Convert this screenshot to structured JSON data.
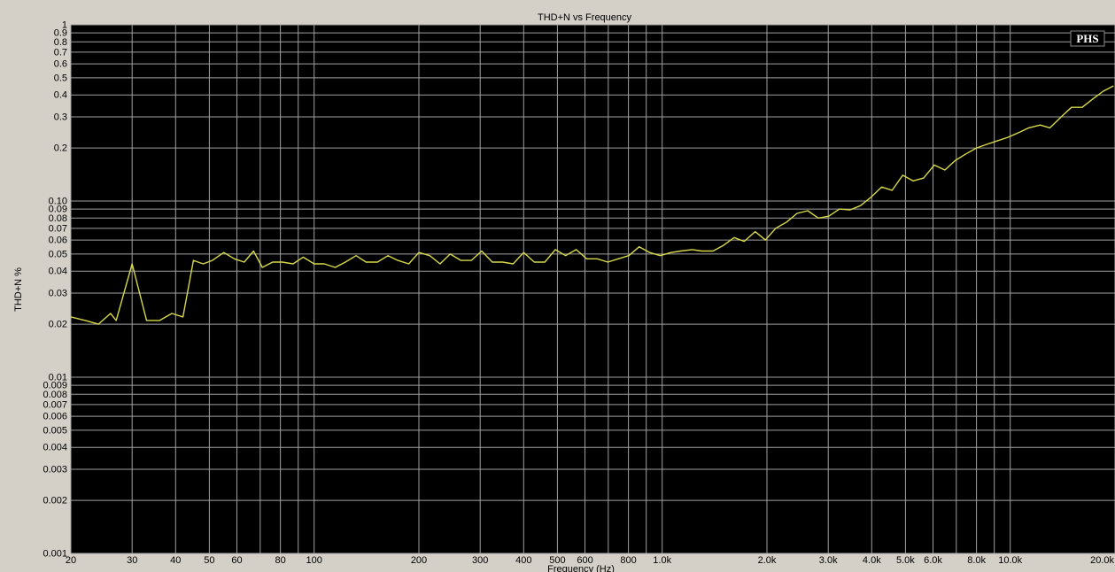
{
  "chart_data": {
    "type": "line",
    "title": "THD+N vs Frequency",
    "xlabel": "Frequency (Hz)",
    "ylabel": "THD+N %",
    "x_scale": "log",
    "y_scale": "log",
    "xlim": [
      20,
      20000
    ],
    "ylim": [
      0.001,
      1
    ],
    "grid": true,
    "badge": "PHS",
    "colors": {
      "background": "#d4d0c8",
      "plot": "#000000",
      "grid": "#a0a0a0",
      "line": "#d8d84a"
    },
    "x_ticks": [
      {
        "v": 20,
        "label": "20"
      },
      {
        "v": 30,
        "label": "30"
      },
      {
        "v": 40,
        "label": "40"
      },
      {
        "v": 50,
        "label": "50"
      },
      {
        "v": 60,
        "label": "60"
      },
      {
        "v": 80,
        "label": "80"
      },
      {
        "v": 100,
        "label": "100"
      },
      {
        "v": 200,
        "label": "200"
      },
      {
        "v": 300,
        "label": "300"
      },
      {
        "v": 400,
        "label": "400"
      },
      {
        "v": 500,
        "label": "500"
      },
      {
        "v": 600,
        "label": "600"
      },
      {
        "v": 800,
        "label": "800"
      },
      {
        "v": 1000,
        "label": "1.0k"
      },
      {
        "v": 2000,
        "label": "2.0k"
      },
      {
        "v": 3000,
        "label": "3.0k"
      },
      {
        "v": 4000,
        "label": "4.0k"
      },
      {
        "v": 5000,
        "label": "5.0k"
      },
      {
        "v": 6000,
        "label": "6.0k"
      },
      {
        "v": 8000,
        "label": "8.0k"
      },
      {
        "v": 10000,
        "label": "10.0k"
      },
      {
        "v": 20000,
        "label": "20.0k"
      }
    ],
    "x_grid": [
      20,
      30,
      40,
      50,
      60,
      70,
      80,
      90,
      100,
      200,
      300,
      400,
      500,
      600,
      700,
      800,
      900,
      1000,
      2000,
      3000,
      4000,
      5000,
      6000,
      7000,
      8000,
      9000,
      10000,
      20000
    ],
    "y_ticks": [
      {
        "v": 1,
        "label": "1"
      },
      {
        "v": 0.9,
        "label": "0.9"
      },
      {
        "v": 0.8,
        "label": "0.8"
      },
      {
        "v": 0.7,
        "label": "0.7"
      },
      {
        "v": 0.6,
        "label": "0.6"
      },
      {
        "v": 0.5,
        "label": "0.5"
      },
      {
        "v": 0.4,
        "label": "0.4"
      },
      {
        "v": 0.3,
        "label": "0.3"
      },
      {
        "v": 0.2,
        "label": "0.2"
      },
      {
        "v": 0.1,
        "label": "0.10"
      },
      {
        "v": 0.09,
        "label": "0.09"
      },
      {
        "v": 0.08,
        "label": "0.08"
      },
      {
        "v": 0.07,
        "label": "0.07"
      },
      {
        "v": 0.06,
        "label": "0.06"
      },
      {
        "v": 0.05,
        "label": "0.05"
      },
      {
        "v": 0.04,
        "label": "0.04"
      },
      {
        "v": 0.03,
        "label": "0.03"
      },
      {
        "v": 0.02,
        "label": "0.02"
      },
      {
        "v": 0.01,
        "label": "0.01"
      },
      {
        "v": 0.009,
        "label": "0.009"
      },
      {
        "v": 0.008,
        "label": "0.008"
      },
      {
        "v": 0.007,
        "label": "0.007"
      },
      {
        "v": 0.006,
        "label": "0.006"
      },
      {
        "v": 0.005,
        "label": "0.005"
      },
      {
        "v": 0.004,
        "label": "0.004"
      },
      {
        "v": 0.003,
        "label": "0.003"
      },
      {
        "v": 0.002,
        "label": "0.002"
      },
      {
        "v": 0.001,
        "label": "0.001"
      }
    ],
    "series": [
      {
        "x": [
          20,
          22,
          24,
          26,
          27,
          30,
          33,
          36,
          39,
          42,
          45,
          48,
          51,
          55,
          59,
          63,
          67,
          71,
          76,
          81,
          87,
          93,
          100,
          107,
          115,
          123,
          132,
          141,
          152,
          163,
          174,
          187,
          200,
          215,
          230,
          246,
          264,
          283,
          303,
          325,
          348,
          373,
          400,
          429,
          460,
          493,
          528,
          566,
          607,
          651,
          698,
          748,
          802,
          859,
          921,
          987,
          1060,
          1130,
          1220,
          1300,
          1400,
          1500,
          1610,
          1720,
          1850,
          1980,
          2120,
          2280,
          2440,
          2620,
          2810,
          3010,
          3230,
          3460,
          3710,
          3980,
          4270,
          4580,
          4910,
          5260,
          5640,
          6050,
          6490,
          6960,
          7460,
          8000,
          8580,
          9200,
          9860,
          10600,
          11300,
          12200,
          13000,
          14000,
          15000,
          16100,
          17300,
          18500,
          19800
        ],
        "y": [
          0.022,
          0.021,
          0.02,
          0.023,
          0.021,
          0.044,
          0.021,
          0.021,
          0.023,
          0.022,
          0.046,
          0.044,
          0.046,
          0.051,
          0.047,
          0.045,
          0.052,
          0.042,
          0.045,
          0.045,
          0.044,
          0.048,
          0.044,
          0.044,
          0.042,
          0.045,
          0.049,
          0.045,
          0.045,
          0.049,
          0.046,
          0.044,
          0.051,
          0.049,
          0.044,
          0.05,
          0.046,
          0.046,
          0.052,
          0.045,
          0.045,
          0.044,
          0.051,
          0.045,
          0.045,
          0.053,
          0.049,
          0.053,
          0.047,
          0.047,
          0.045,
          0.047,
          0.049,
          0.055,
          0.051,
          0.049,
          0.051,
          0.052,
          0.053,
          0.052,
          0.052,
          0.056,
          0.062,
          0.059,
          0.067,
          0.06,
          0.07,
          0.076,
          0.085,
          0.088,
          0.08,
          0.082,
          0.09,
          0.089,
          0.094,
          0.105,
          0.12,
          0.115,
          0.14,
          0.13,
          0.135,
          0.16,
          0.15,
          0.17,
          0.185,
          0.2,
          0.21,
          0.22,
          0.23,
          0.245,
          0.26,
          0.27,
          0.26,
          0.3,
          0.34,
          0.34,
          0.38,
          0.42,
          0.45
        ]
      }
    ]
  }
}
